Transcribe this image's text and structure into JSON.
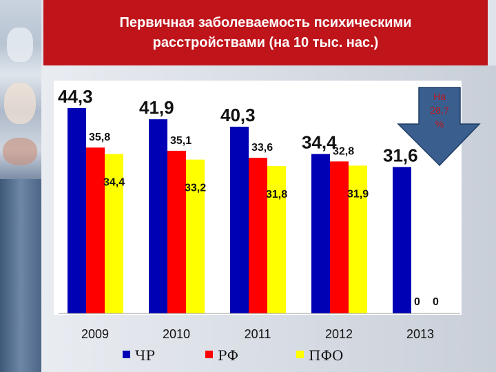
{
  "header": {
    "title_line1": "Первичная заболеваемость психическими",
    "title_line2": "расстройствами  (на 10 тыс. нас.)"
  },
  "callout": {
    "line1": "На",
    "line2": "28,7",
    "line3": "%",
    "color": "#3a5f8f"
  },
  "chart_data": {
    "type": "bar",
    "title": "Первичная заболеваемость психическими расстройствами  (на 10 тыс. нас.)",
    "categories": [
      "2009",
      "2010",
      "2011",
      "2012",
      "2013"
    ],
    "series": [
      {
        "name": "ЧР",
        "color": "#0000b4",
        "values": [
          44.3,
          41.9,
          40.3,
          34.4,
          31.6
        ],
        "labels": [
          "44,3",
          "41,9",
          "40,3",
          "34,4",
          "31,6"
        ],
        "label_size": "large"
      },
      {
        "name": "РФ",
        "color": "#ff0000",
        "values": [
          35.8,
          35.1,
          33.6,
          32.8,
          0
        ],
        "labels": [
          "35,8",
          "35,1",
          "33,6",
          "32,8",
          "0"
        ],
        "label_size": "small"
      },
      {
        "name": "ПФО",
        "color": "#ffff00",
        "values": [
          34.4,
          33.2,
          31.8,
          31.9,
          0
        ],
        "labels": [
          "34,4",
          "33,2",
          "31,8",
          "31,9",
          "0"
        ],
        "label_size": "small"
      }
    ],
    "ylim": [
      0,
      44.3
    ],
    "grid": false,
    "legend": "bottom"
  }
}
